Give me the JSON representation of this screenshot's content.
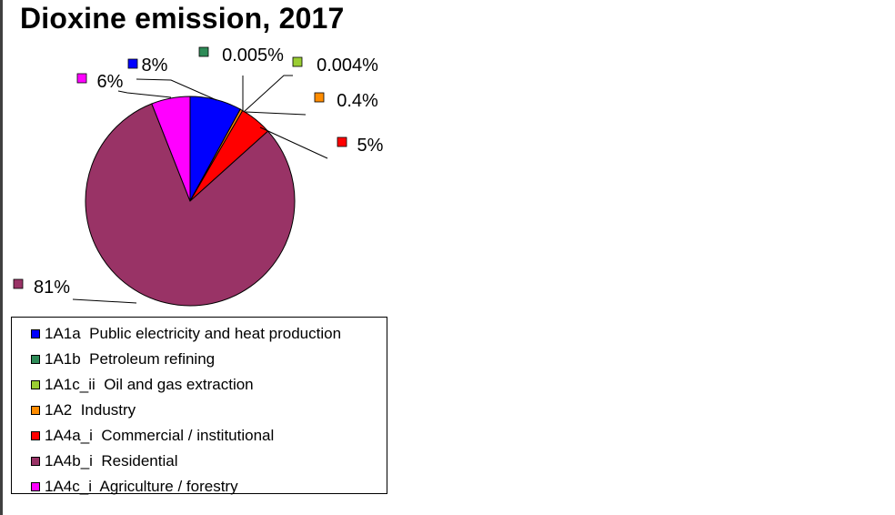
{
  "chart_data": {
    "type": "pie",
    "title": "Dioxine emission, 2017",
    "slices": [
      {
        "name": "1A1a  Public electricity and heat production",
        "value": 8,
        "label": "8%",
        "color": "#0000FF"
      },
      {
        "name": "1A1b  Petroleum refining",
        "value": 0.005,
        "label": "0.005%",
        "color": "#2E8B57"
      },
      {
        "name": "1A1c_ii  Oil and gas extraction",
        "value": 0.004,
        "label": "0.004%",
        "color": "#9ACD32"
      },
      {
        "name": "1A2  Industry",
        "value": 0.4,
        "label": "0.4%",
        "color": "#FF8C00"
      },
      {
        "name": "1A4a_i  Commercial / institutional",
        "value": 5,
        "label": "5%",
        "color": "#FF0000"
      },
      {
        "name": "1A4b_i  Residential",
        "value": 81,
        "label": "81%",
        "color": "#993366"
      },
      {
        "name": "1A4c_i  Agriculture / forestry",
        "value": 6,
        "label": "6%",
        "color": "#FF00FF"
      }
    ],
    "legend_position": "bottom"
  }
}
